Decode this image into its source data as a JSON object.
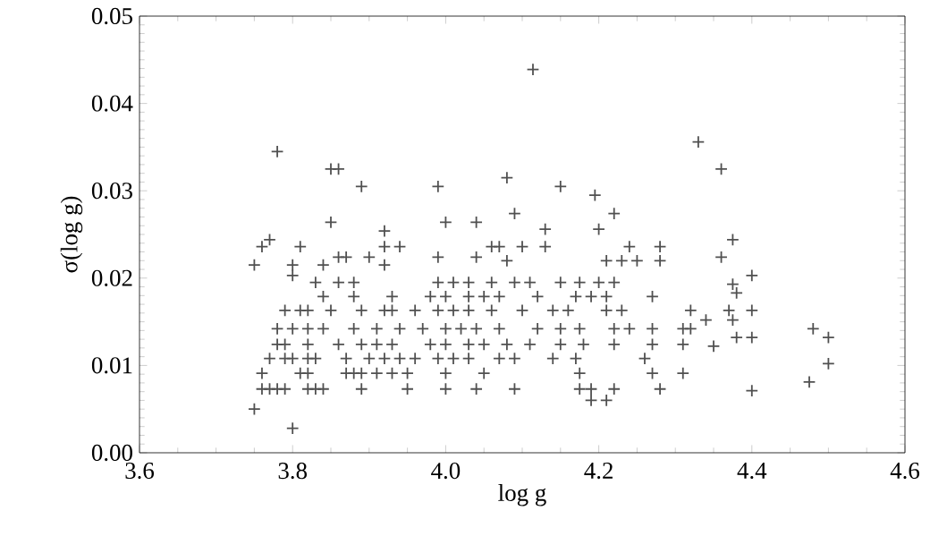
{
  "chart_data": {
    "type": "scatter",
    "xlabel": "log g",
    "ylabel": "σ(log g)",
    "xlim": [
      3.6,
      4.6
    ],
    "xticks": [
      3.6,
      3.8,
      {
        "value": 4.0,
        "label": "4.0"
      },
      4.2,
      4.4,
      4.6
    ],
    "ylim": [
      0.0,
      0.05
    ],
    "yticks": [
      {
        "value": 0.0,
        "label": "0.00"
      },
      0.01,
      0.02,
      0.03,
      0.04,
      0.05
    ],
    "marker": "cross",
    "series": [
      {
        "color": "#505050",
        "x": [
          3.78,
          3.85,
          3.86,
          3.89,
          3.99,
          3.85,
          4.0,
          4.04,
          3.92,
          3.77,
          3.76,
          3.75,
          3.81,
          3.8,
          3.8,
          3.84,
          3.86,
          3.87,
          3.9,
          3.92,
          3.94,
          3.92,
          3.99,
          4.04,
          3.75,
          3.8,
          3.76,
          3.77,
          3.78,
          3.79,
          3.82,
          3.83,
          3.84,
          3.89,
          3.95,
          4.0,
          4.04,
          4.09,
          4.175,
          4.19,
          4.22,
          4.28,
          4.19,
          4.21,
          3.76,
          3.81,
          3.82,
          3.87,
          3.88,
          3.89,
          3.91,
          3.93,
          3.95,
          4.0,
          4.05,
          4.175,
          4.27,
          4.31,
          3.77,
          3.79,
          3.8,
          3.82,
          3.83,
          3.87,
          3.9,
          3.92,
          3.94,
          3.96,
          3.99,
          4.01,
          4.03,
          4.07,
          4.09,
          4.14,
          4.17,
          4.26,
          3.78,
          3.79,
          3.82,
          3.86,
          3.89,
          3.91,
          3.93,
          3.98,
          4.0,
          4.03,
          4.05,
          4.08,
          4.11,
          4.15,
          4.18,
          4.22,
          4.27,
          4.31,
          3.78,
          3.8,
          3.82,
          3.84,
          3.88,
          3.91,
          3.94,
          3.97,
          4.0,
          4.02,
          4.04,
          4.07,
          4.12,
          4.15,
          4.175,
          4.22,
          4.24,
          4.27,
          4.31,
          4.32,
          3.79,
          3.81,
          3.82,
          3.85,
          3.89,
          3.92,
          3.93,
          3.96,
          3.99,
          4.01,
          4.03,
          4.06,
          4.1,
          4.14,
          4.16,
          4.21,
          4.23,
          4.32,
          3.84,
          3.88,
          3.93,
          3.98,
          4.0,
          4.03,
          4.05,
          4.07,
          4.12,
          4.17,
          4.19,
          4.21,
          4.27,
          3.83,
          3.86,
          3.88,
          3.99,
          4.01,
          4.03,
          4.06,
          4.09,
          4.11,
          4.15,
          4.175,
          4.2,
          4.22,
          4.08,
          4.21,
          4.23,
          4.25,
          4.28,
          4.06,
          4.07,
          4.1,
          4.13,
          4.24,
          4.28,
          4.13,
          4.2,
          4.114,
          4.08,
          4.15,
          4.195,
          4.22,
          4.09,
          4.33,
          4.36,
          4.375,
          4.36,
          4.4,
          4.375,
          4.38,
          4.4,
          4.37,
          4.375,
          4.34,
          4.38,
          4.4,
          4.35,
          4.4,
          4.48,
          4.5,
          4.5,
          4.475
        ],
        "values": [
          0.0345,
          0.0325,
          0.0325,
          0.0305,
          0.0305,
          0.0264,
          0.0264,
          0.0264,
          0.0254,
          0.0244,
          0.0236,
          0.0215,
          0.0236,
          0.0215,
          0.0203,
          0.0215,
          0.0224,
          0.0224,
          0.0224,
          0.0236,
          0.0236,
          0.0215,
          0.0224,
          0.0224,
          0.005,
          0.0028,
          0.0073,
          0.0073,
          0.0073,
          0.0073,
          0.0073,
          0.0073,
          0.0073,
          0.0073,
          0.0073,
          0.0073,
          0.0073,
          0.0073,
          0.0073,
          0.0073,
          0.0073,
          0.0073,
          0.006,
          0.006,
          0.0091,
          0.0091,
          0.0091,
          0.0091,
          0.0091,
          0.0091,
          0.0091,
          0.0091,
          0.0091,
          0.0091,
          0.0091,
          0.0091,
          0.0091,
          0.0091,
          0.0108,
          0.0108,
          0.0108,
          0.0108,
          0.0108,
          0.0108,
          0.0108,
          0.0108,
          0.0108,
          0.0108,
          0.0108,
          0.0108,
          0.0108,
          0.0108,
          0.0108,
          0.0108,
          0.0108,
          0.0108,
          0.0124,
          0.0124,
          0.0124,
          0.0124,
          0.0124,
          0.0124,
          0.0124,
          0.0124,
          0.0124,
          0.0124,
          0.0124,
          0.0124,
          0.0124,
          0.0124,
          0.0124,
          0.0124,
          0.0124,
          0.0124,
          0.0142,
          0.0142,
          0.0142,
          0.0142,
          0.0142,
          0.0142,
          0.0142,
          0.0142,
          0.0142,
          0.0142,
          0.0142,
          0.0142,
          0.0142,
          0.0142,
          0.0142,
          0.0142,
          0.0142,
          0.0142,
          0.0142,
          0.0142,
          0.0163,
          0.0163,
          0.0163,
          0.0163,
          0.0163,
          0.0163,
          0.0163,
          0.0163,
          0.0163,
          0.0163,
          0.0163,
          0.0163,
          0.0163,
          0.0163,
          0.0163,
          0.0163,
          0.0163,
          0.0163,
          0.0179,
          0.0179,
          0.0179,
          0.0179,
          0.0179,
          0.0179,
          0.0179,
          0.0179,
          0.0179,
          0.0179,
          0.0179,
          0.0179,
          0.0179,
          0.0195,
          0.0195,
          0.0195,
          0.0195,
          0.0195,
          0.0195,
          0.0195,
          0.0195,
          0.0195,
          0.0195,
          0.0195,
          0.0195,
          0.0195,
          0.022,
          0.022,
          0.022,
          0.022,
          0.022,
          0.0236,
          0.0236,
          0.0236,
          0.0236,
          0.0236,
          0.0236,
          0.0256,
          0.0256,
          0.0439,
          0.0315,
          0.0305,
          0.0295,
          0.0274,
          0.0274,
          0.0356,
          0.0325,
          0.0244,
          0.0224,
          0.0203,
          0.0193,
          0.0183,
          0.0163,
          0.0163,
          0.0152,
          0.0152,
          0.0132,
          0.0132,
          0.0122,
          0.0071,
          0.0142,
          0.0132,
          0.0102,
          0.0081
        ]
      }
    ]
  }
}
